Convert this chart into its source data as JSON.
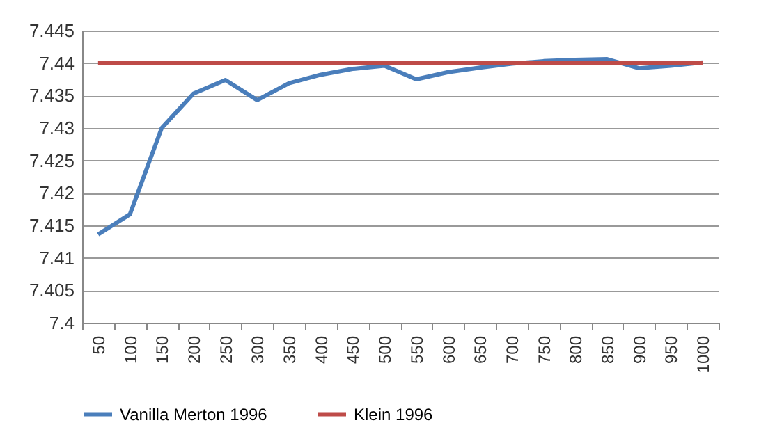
{
  "chart_data": {
    "type": "line",
    "categories": [
      "50",
      "100",
      "150",
      "200",
      "250",
      "300",
      "350",
      "400",
      "450",
      "500",
      "550",
      "600",
      "650",
      "700",
      "750",
      "800",
      "850",
      "900",
      "950",
      "1000"
    ],
    "series": [
      {
        "name": "Vanilla Merton 1996",
        "color": "#4a7ebb",
        "values": [
          7.4136,
          7.4167,
          7.43,
          7.4353,
          7.4374,
          7.4343,
          7.4369,
          7.4382,
          7.4391,
          7.4396,
          7.4375,
          7.4386,
          7.4393,
          7.4399,
          7.4403,
          7.4405,
          7.4406,
          7.4392,
          7.4396,
          7.4401
        ]
      },
      {
        "name": "Klein 1996",
        "color": "#be4b48",
        "values": [
          7.44,
          7.44,
          7.44,
          7.44,
          7.44,
          7.44,
          7.44,
          7.44,
          7.44,
          7.44,
          7.44,
          7.44,
          7.44,
          7.44,
          7.44,
          7.44,
          7.44,
          7.44,
          7.44,
          7.44
        ]
      }
    ],
    "ylim": [
      7.4,
      7.445
    ],
    "yticks": [
      7.4,
      7.405,
      7.41,
      7.415,
      7.42,
      7.425,
      7.43,
      7.435,
      7.44,
      7.445
    ],
    "grid": "y",
    "legend": "bottom",
    "marker": "none",
    "line_style": "solid"
  }
}
